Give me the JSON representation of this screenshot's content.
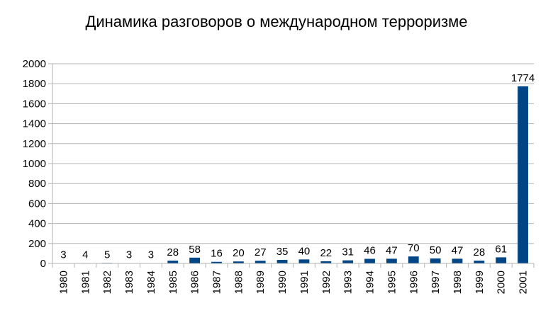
{
  "chart_data": {
    "type": "bar",
    "title": "Динамика разговоров о международном терроризме",
    "xlabel": "",
    "ylabel": "",
    "categories": [
      "1980",
      "1981",
      "1982",
      "1983",
      "1984",
      "1985",
      "1986",
      "1987",
      "1988",
      "1989",
      "1990",
      "1991",
      "1992",
      "1993",
      "1994",
      "1995",
      "1996",
      "1997",
      "1998",
      "1999",
      "2000",
      "2001"
    ],
    "values": [
      3,
      4,
      5,
      3,
      3,
      28,
      58,
      16,
      20,
      27,
      35,
      40,
      22,
      31,
      46,
      47,
      70,
      50,
      47,
      28,
      61,
      1774
    ],
    "data_labels": [
      "3",
      "4",
      "5",
      "3",
      "3",
      "28",
      "58",
      "16",
      "20",
      "27",
      "35",
      "40",
      "22",
      "31",
      "46",
      "47",
      "70",
      "50",
      "47",
      "28",
      "61",
      "1774"
    ],
    "ylim": [
      0,
      2000
    ],
    "yticks": [
      "0",
      "200",
      "400",
      "600",
      "800",
      "1000",
      "1200",
      "1400",
      "1600",
      "1800",
      "2000"
    ],
    "grid": true,
    "legend": "none",
    "bar_color": "#004586",
    "grid_color": "#b3b3b3",
    "axis_color": "#b3b3b3"
  }
}
